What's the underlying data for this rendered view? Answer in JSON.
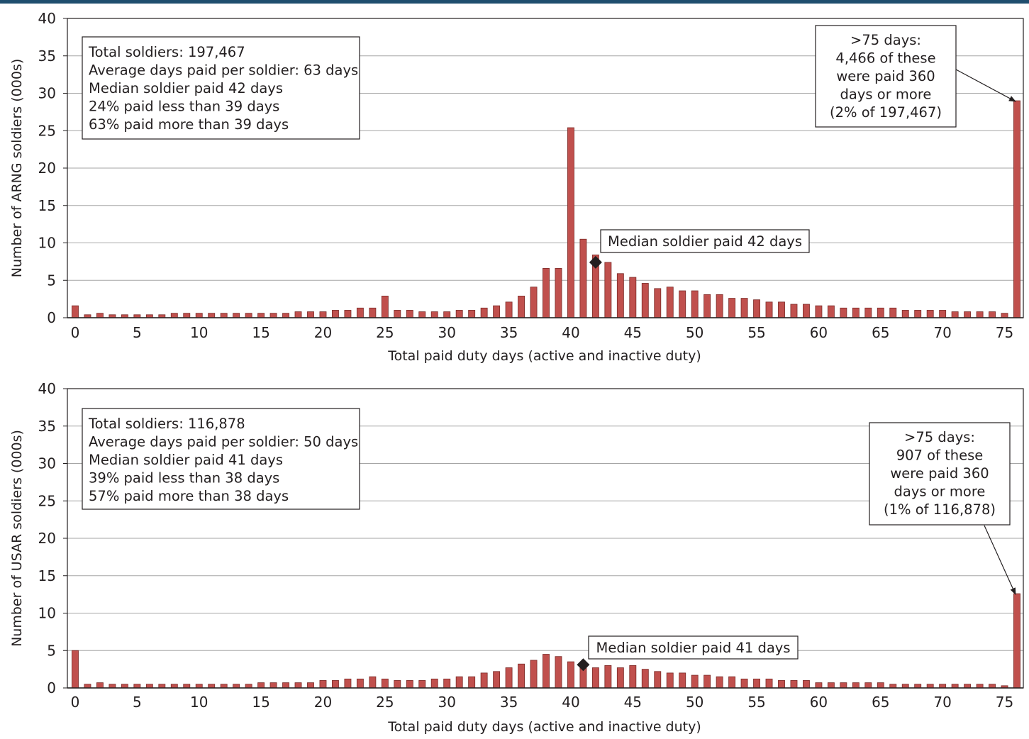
{
  "colors": {
    "header_bar": "#1f4e6e",
    "bar_fill": "#c0504d",
    "bar_stroke": "#7a2a27",
    "grid": "#a6a6a6",
    "text": "#231f20",
    "marker": "#231f20"
  },
  "chart_data": [
    {
      "type": "bar",
      "x": [
        0,
        1,
        2,
        3,
        4,
        5,
        6,
        7,
        8,
        9,
        10,
        11,
        12,
        13,
        14,
        15,
        16,
        17,
        18,
        19,
        20,
        21,
        22,
        23,
        24,
        25,
        26,
        27,
        28,
        29,
        30,
        31,
        32,
        33,
        34,
        35,
        36,
        37,
        38,
        39,
        40,
        41,
        42,
        43,
        44,
        45,
        46,
        47,
        48,
        49,
        50,
        51,
        52,
        53,
        54,
        55,
        56,
        57,
        58,
        59,
        60,
        61,
        62,
        63,
        64,
        65,
        66,
        67,
        68,
        69,
        70,
        71,
        72,
        73,
        74,
        75,
        76
      ],
      "values": [
        1.6,
        0.4,
        0.6,
        0.4,
        0.4,
        0.4,
        0.4,
        0.4,
        0.6,
        0.6,
        0.6,
        0.6,
        0.6,
        0.6,
        0.6,
        0.6,
        0.6,
        0.6,
        0.8,
        0.8,
        0.8,
        1.0,
        1.0,
        1.3,
        1.3,
        2.9,
        1.0,
        1.0,
        0.8,
        0.8,
        0.8,
        1.0,
        1.0,
        1.3,
        1.6,
        2.1,
        2.9,
        4.1,
        6.6,
        6.6,
        25.4,
        10.5,
        8.4,
        7.4,
        5.9,
        5.4,
        4.6,
        3.9,
        4.1,
        3.6,
        3.6,
        3.1,
        3.1,
        2.6,
        2.6,
        2.4,
        2.1,
        2.1,
        1.8,
        1.8,
        1.6,
        1.6,
        1.3,
        1.3,
        1.3,
        1.3,
        1.3,
        1.0,
        1.0,
        1.0,
        1.0,
        0.8,
        0.8,
        0.8,
        0.8,
        0.6,
        29.0
      ],
      "xlim": [
        0,
        76
      ],
      "xticks": [
        0,
        5,
        10,
        15,
        20,
        25,
        30,
        35,
        40,
        45,
        50,
        55,
        60,
        65,
        70,
        75
      ],
      "ylim": [
        0,
        40
      ],
      "yticks": [
        0,
        5,
        10,
        15,
        20,
        25,
        30,
        35,
        40
      ],
      "grid": true,
      "xlabel": "Total paid duty days (active and inactive duty)",
      "ylabel": "Number of ARNG soldiers (000s)",
      "summary_lines": [
        "Total soldiers: 197,467",
        "Average days paid per soldier: 63 days",
        "Median soldier paid 42 days",
        "24% paid less than 39 days",
        "63% paid more than 39 days"
      ],
      "median": {
        "x": 42,
        "y": 7.4,
        "label": "Median soldier paid 42 days"
      },
      "overflow_note_lines": [
        ">75 days:",
        "4,466 of these",
        "were paid 360",
        "days or more",
        "(2% of 197,467)"
      ]
    },
    {
      "type": "bar",
      "x": [
        0,
        1,
        2,
        3,
        4,
        5,
        6,
        7,
        8,
        9,
        10,
        11,
        12,
        13,
        14,
        15,
        16,
        17,
        18,
        19,
        20,
        21,
        22,
        23,
        24,
        25,
        26,
        27,
        28,
        29,
        30,
        31,
        32,
        33,
        34,
        35,
        36,
        37,
        38,
        39,
        40,
        41,
        42,
        43,
        44,
        45,
        46,
        47,
        48,
        49,
        50,
        51,
        52,
        53,
        54,
        55,
        56,
        57,
        58,
        59,
        60,
        61,
        62,
        63,
        64,
        65,
        66,
        67,
        68,
        69,
        70,
        71,
        72,
        73,
        74,
        75,
        76
      ],
      "values": [
        5.0,
        0.5,
        0.7,
        0.5,
        0.5,
        0.5,
        0.5,
        0.5,
        0.5,
        0.5,
        0.5,
        0.5,
        0.5,
        0.5,
        0.5,
        0.7,
        0.7,
        0.7,
        0.7,
        0.7,
        1.0,
        1.0,
        1.2,
        1.2,
        1.5,
        1.2,
        1.0,
        1.0,
        1.0,
        1.2,
        1.2,
        1.5,
        1.5,
        2.0,
        2.2,
        2.7,
        3.2,
        3.7,
        4.5,
        4.2,
        3.5,
        3.0,
        2.7,
        3.0,
        2.7,
        3.0,
        2.5,
        2.2,
        2.0,
        2.0,
        1.7,
        1.7,
        1.5,
        1.5,
        1.2,
        1.2,
        1.2,
        1.0,
        1.0,
        1.0,
        0.7,
        0.7,
        0.7,
        0.7,
        0.7,
        0.7,
        0.5,
        0.5,
        0.5,
        0.5,
        0.5,
        0.5,
        0.5,
        0.5,
        0.5,
        0.3,
        12.6
      ],
      "xlim": [
        0,
        76
      ],
      "xticks": [
        0,
        5,
        10,
        15,
        20,
        25,
        30,
        35,
        40,
        45,
        50,
        55,
        60,
        65,
        70,
        75
      ],
      "ylim": [
        0,
        40
      ],
      "yticks": [
        0,
        5,
        10,
        15,
        20,
        25,
        30,
        35,
        40
      ],
      "grid": true,
      "xlabel": "Total paid duty days (active and inactive duty)",
      "ylabel": "Number of USAR soldiers (000s)",
      "summary_lines": [
        "Total soldiers: 116,878",
        "Average days paid per soldier: 50 days",
        "Median soldier paid 41 days",
        "39% paid less than 38 days",
        "57% paid more than 38 days"
      ],
      "median": {
        "x": 41,
        "y": 3.1,
        "label": "Median soldier paid 41 days"
      },
      "overflow_note_lines": [
        ">75 days:",
        "907 of these",
        "were paid 360",
        "days or more",
        "(1% of 116,878)"
      ]
    }
  ]
}
